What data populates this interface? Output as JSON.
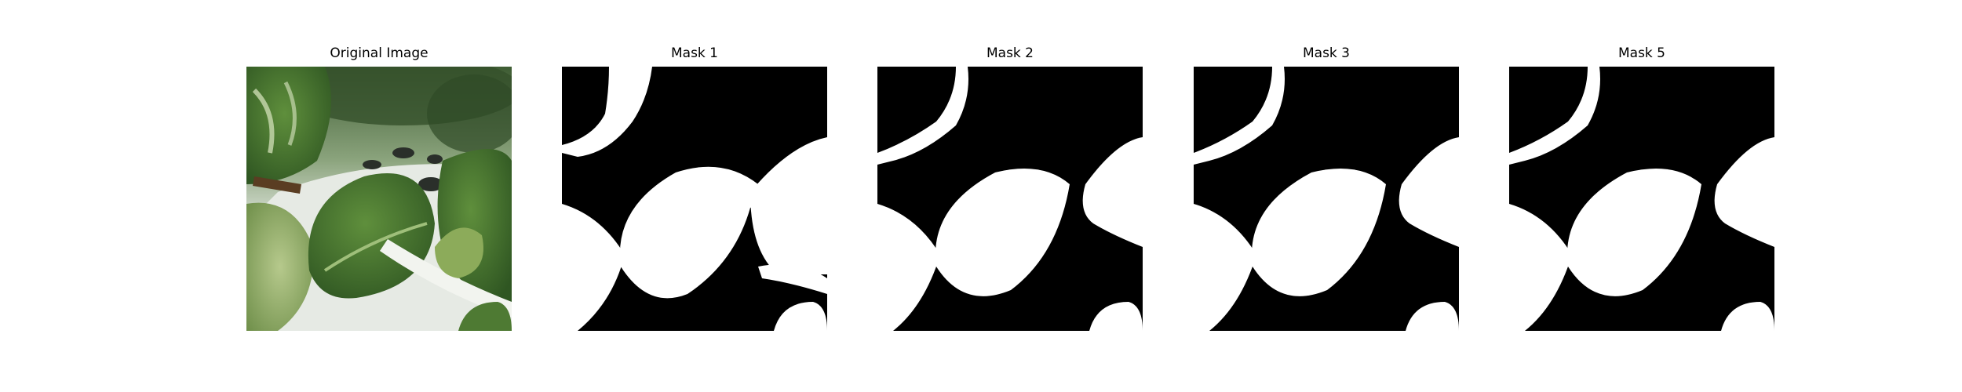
{
  "panels": [
    {
      "title": "Original Image",
      "kind": "photo"
    },
    {
      "title": "Mask 1",
      "kind": "mask"
    },
    {
      "title": "Mask 2",
      "kind": "mask"
    },
    {
      "title": "Mask 3",
      "kind": "mask"
    },
    {
      "title": "Mask 5",
      "kind": "mask"
    }
  ],
  "colors": {
    "mask_background": "#000000",
    "mask_foreground": "#ffffff",
    "leaf_dark": "#3f6a2c",
    "leaf_mid": "#5d8a3c",
    "leaf_light": "#9bbd6f",
    "tray_white": "#e4e8e2",
    "background_green": "#3d5a33"
  }
}
